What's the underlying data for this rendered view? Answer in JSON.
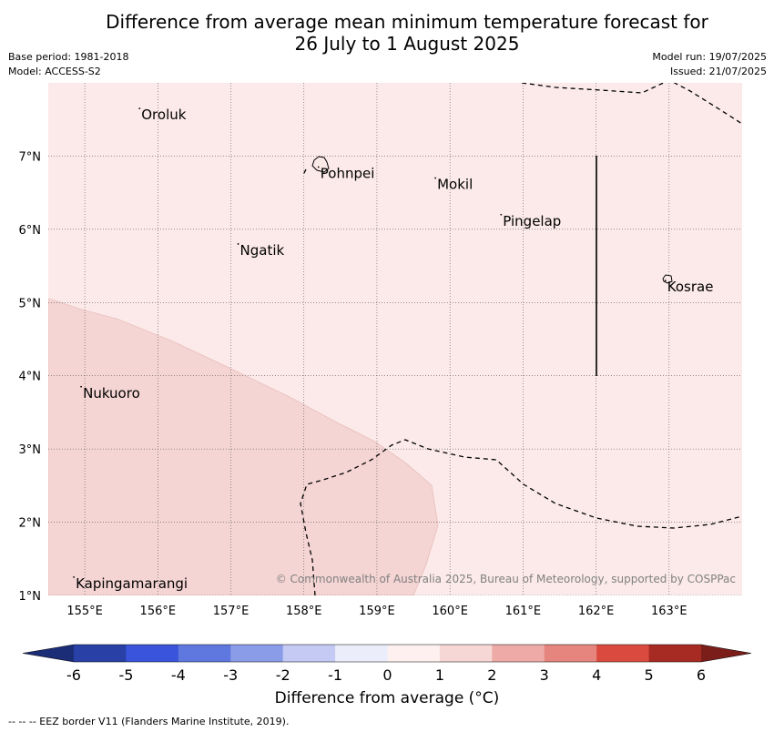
{
  "title": {
    "line1": "Difference from average mean minimum temperature forecast for",
    "line2": "26 July to 1 August 2025"
  },
  "meta": {
    "base_period": "Base period: 1981-2018",
    "model": "Model: ACCESS-S2",
    "model_run": "Model run: 19/07/2025",
    "issued": "Issued: 21/07/2025"
  },
  "map": {
    "lon_range": [
      154.5,
      164.0
    ],
    "lat_range": [
      1.0,
      8.0
    ],
    "lon_ticks": [
      "155°E",
      "156°E",
      "157°E",
      "158°E",
      "159°E",
      "160°E",
      "161°E",
      "162°E",
      "163°E"
    ],
    "lat_ticks": [
      "1°N",
      "2°N",
      "3°N",
      "4°N",
      "5°N",
      "6°N",
      "7°N"
    ],
    "background_category": "0 to 1",
    "region_category": "1 to 2",
    "places": [
      {
        "name": "Oroluk",
        "lon": 155.75,
        "lat": 7.65
      },
      {
        "name": "Pohnpei",
        "lon": 158.2,
        "lat": 6.85
      },
      {
        "name": "Mokil",
        "lon": 159.8,
        "lat": 6.7
      },
      {
        "name": "Pingelap",
        "lon": 160.7,
        "lat": 6.2
      },
      {
        "name": "Ngatik",
        "lon": 157.1,
        "lat": 5.8
      },
      {
        "name": "Kosrae",
        "lon": 162.95,
        "lat": 5.3
      },
      {
        "name": "Nukuoro",
        "lon": 154.95,
        "lat": 3.85
      },
      {
        "name": "Kapingamarangi",
        "lon": 154.85,
        "lat": 1.25
      }
    ],
    "copyright": "© Commonwealth of Australia 2025, Bureau of Meteorology, supported by COSPPac"
  },
  "colorbar": {
    "ticks": [
      "-6",
      "-5",
      "-4",
      "-3",
      "-2",
      "-1",
      "0",
      "1",
      "2",
      "3",
      "4",
      "5",
      "6"
    ],
    "colors": [
      "#2940a6",
      "#3a55db",
      "#5f78e0",
      "#8a9ce8",
      "#c4caf3",
      "#ebedfb",
      "#fdf0ef",
      "#f7d7d5",
      "#edaaa6",
      "#e6857d",
      "#da4a3e",
      "#a82b23"
    ],
    "under_color": "#1c2d78",
    "over_color": "#7b1e1a",
    "label": "Difference from average (°C)"
  },
  "footnote": "--  --  -- EEZ border V11 (Flanders Marine Institute, 2019)."
}
